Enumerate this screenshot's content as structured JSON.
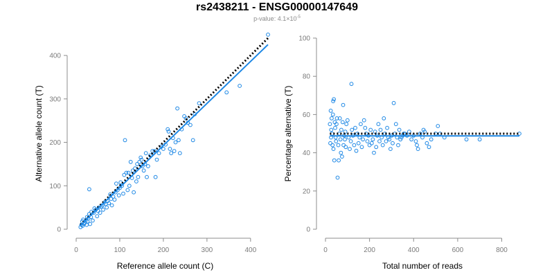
{
  "title": "rs2438211 - ENSG00000147649",
  "subtitle": {
    "prefix": "p-value: 4.1×10",
    "exponent": "-5"
  },
  "chart_data": [
    {
      "type": "scatter",
      "xlabel": "Reference allele count (C)",
      "ylabel": "Alternative allele count (T)",
      "xlim": [
        0,
        440
      ],
      "ylim": [
        0,
        440
      ],
      "xticks": [
        0,
        100,
        200,
        300,
        400
      ],
      "yticks": [
        0,
        100,
        200,
        300,
        400
      ],
      "point_color": "#1e88e5",
      "series": [
        {
          "type": "scatter",
          "points": [
            [
              10,
              5
            ],
            [
              12,
              10
            ],
            [
              14,
              18
            ],
            [
              15,
              8
            ],
            [
              16,
              22
            ],
            [
              18,
              12
            ],
            [
              20,
              15
            ],
            [
              22,
              20
            ],
            [
              24,
              10
            ],
            [
              25,
              28
            ],
            [
              26,
              18
            ],
            [
              28,
              25
            ],
            [
              30,
              92
            ],
            [
              30,
              35
            ],
            [
              32,
              12
            ],
            [
              34,
              28
            ],
            [
              35,
              40
            ],
            [
              38,
              20
            ],
            [
              40,
              38
            ],
            [
              42,
              48
            ],
            [
              45,
              45
            ],
            [
              48,
              30
            ],
            [
              50,
              42
            ],
            [
              52,
              50
            ],
            [
              55,
              38
            ],
            [
              58,
              52
            ],
            [
              60,
              55
            ],
            [
              62,
              45
            ],
            [
              65,
              62
            ],
            [
              68,
              58
            ],
            [
              70,
              50
            ],
            [
              72,
              65
            ],
            [
              75,
              60
            ],
            [
              78,
              80
            ],
            [
              80,
              70
            ],
            [
              82,
              55
            ],
            [
              85,
              75
            ],
            [
              88,
              68
            ],
            [
              90,
              85
            ],
            [
              92,
              105
            ],
            [
              95,
              90
            ],
            [
              98,
              78
            ],
            [
              100,
              95
            ],
            [
              102,
              108
            ],
            [
              105,
              100
            ],
            [
              108,
              82
            ],
            [
              110,
              125
            ],
            [
              112,
              205
            ],
            [
              115,
              130
            ],
            [
              118,
              90
            ],
            [
              120,
              130
            ],
            [
              122,
              100
            ],
            [
              125,
              155
            ],
            [
              128,
              118
            ],
            [
              130,
              135
            ],
            [
              132,
              85
            ],
            [
              135,
              140
            ],
            [
              138,
              110
            ],
            [
              140,
              150
            ],
            [
              142,
              120
            ],
            [
              145,
              155
            ],
            [
              148,
              165
            ],
            [
              150,
              160
            ],
            [
              152,
              145
            ],
            [
              155,
              135
            ],
            [
              158,
              150
            ],
            [
              160,
              175
            ],
            [
              162,
              120
            ],
            [
              165,
              145
            ],
            [
              170,
              170
            ],
            [
              175,
              180
            ],
            [
              180,
              180
            ],
            [
              182,
              120
            ],
            [
              185,
              160
            ],
            [
              190,
              175
            ],
            [
              195,
              190
            ],
            [
              200,
              185
            ],
            [
              205,
              195
            ],
            [
              210,
              230
            ],
            [
              212,
              225
            ],
            [
              215,
              185
            ],
            [
              218,
              175
            ],
            [
              222,
              210
            ],
            [
              225,
              180
            ],
            [
              228,
              200
            ],
            [
              232,
              278
            ],
            [
              235,
              205
            ],
            [
              238,
              175
            ],
            [
              242,
              230
            ],
            [
              248,
              260
            ],
            [
              252,
              255
            ],
            [
              256,
              245
            ],
            [
              262,
              240
            ],
            [
              268,
              205
            ],
            [
              272,
              265
            ],
            [
              282,
              290
            ],
            [
              345,
              315
            ],
            [
              375,
              330
            ],
            [
              440,
              448
            ]
          ]
        },
        {
          "type": "dotted-line",
          "role": "expected",
          "color": "#000000",
          "points": [
            [
              10,
              10
            ],
            [
              440,
              440
            ]
          ]
        },
        {
          "type": "line",
          "role": "fitted",
          "color": "#1e88e5",
          "points": [
            [
              10,
              9
            ],
            [
              440,
              425
            ]
          ]
        }
      ]
    },
    {
      "type": "scatter",
      "xlabel": "Total number of reads",
      "ylabel": "Percentage alternative (T)",
      "xlim": [
        0,
        880
      ],
      "ylim": [
        0,
        100
      ],
      "xticks": [
        0,
        200,
        400,
        600,
        800
      ],
      "yticks": [
        0,
        20,
        40,
        60,
        80,
        100
      ],
      "point_color": "#1e88e5",
      "series": [
        {
          "type": "scatter",
          "points": [
            [
              20,
              55
            ],
            [
              22,
              45
            ],
            [
              24,
              62
            ],
            [
              25,
              48
            ],
            [
              26,
              52
            ],
            [
              28,
              58
            ],
            [
              30,
              50
            ],
            [
              32,
              44
            ],
            [
              34,
              60
            ],
            [
              35,
              67
            ],
            [
              36,
              42
            ],
            [
              38,
              68
            ],
            [
              40,
              36
            ],
            [
              42,
              56
            ],
            [
              44,
              53
            ],
            [
              46,
              48
            ],
            [
              48,
              46
            ],
            [
              50,
              55
            ],
            [
              52,
              58
            ],
            [
              55,
              27
            ],
            [
              58,
              44
            ],
            [
              60,
              36
            ],
            [
              62,
              50
            ],
            [
              65,
              58
            ],
            [
              68,
              47
            ],
            [
              70,
              40
            ],
            [
              72,
              52
            ],
            [
              75,
              38
            ],
            [
              78,
              56
            ],
            [
              80,
              65
            ],
            [
              82,
              44
            ],
            [
              85,
              49
            ],
            [
              88,
              47
            ],
            [
              90,
              51
            ],
            [
              92,
              43
            ],
            [
              95,
              55
            ],
            [
              100,
              57
            ],
            [
              105,
              48
            ],
            [
              110,
              42
            ],
            [
              115,
              46
            ],
            [
              118,
              76
            ],
            [
              120,
              52
            ],
            [
              125,
              49
            ],
            [
              130,
              44
            ],
            [
              135,
              53
            ],
            [
              140,
              41
            ],
            [
              145,
              50
            ],
            [
              150,
              45
            ],
            [
              155,
              48
            ],
            [
              160,
              55
            ],
            [
              165,
              43
            ],
            [
              170,
              47
            ],
            [
              175,
              57
            ],
            [
              180,
              53
            ],
            [
              185,
              50
            ],
            [
              190,
              46
            ],
            [
              195,
              49
            ],
            [
              200,
              44
            ],
            [
              205,
              52
            ],
            [
              210,
              45
            ],
            [
              215,
              47
            ],
            [
              220,
              40
            ],
            [
              225,
              51
            ],
            [
              230,
              43
            ],
            [
              235,
              49
            ],
            [
              240,
              55
            ],
            [
              245,
              46
            ],
            [
              250,
              52
            ],
            [
              255,
              48
            ],
            [
              260,
              44
            ],
            [
              265,
              58
            ],
            [
              270,
              50
            ],
            [
              275,
              46
            ],
            [
              280,
              53
            ],
            [
              285,
              48
            ],
            [
              290,
              47
            ],
            [
              295,
              42
            ],
            [
              300,
              49
            ],
            [
              305,
              45
            ],
            [
              310,
              66
            ],
            [
              315,
              50
            ],
            [
              320,
              55
            ],
            [
              325,
              48
            ],
            [
              330,
              44
            ],
            [
              335,
              52
            ],
            [
              340,
              47
            ],
            [
              345,
              48
            ],
            [
              350,
              49
            ],
            [
              355,
              50
            ],
            [
              360,
              50
            ],
            [
              370,
              49
            ],
            [
              380,
              51
            ],
            [
              390,
              47
            ],
            [
              400,
              49
            ],
            [
              410,
              46
            ],
            [
              415,
              44
            ],
            [
              420,
              42
            ],
            [
              430,
              50
            ],
            [
              440,
              48
            ],
            [
              445,
              52
            ],
            [
              450,
              51
            ],
            [
              460,
              45
            ],
            [
              470,
              43
            ],
            [
              480,
              47
            ],
            [
              500,
              50
            ],
            [
              510,
              54
            ],
            [
              520,
              50
            ],
            [
              540,
              48
            ],
            [
              640,
              47
            ],
            [
              700,
              47
            ],
            [
              880,
              50
            ]
          ]
        },
        {
          "type": "dotted-line",
          "role": "expected",
          "color": "#000000",
          "points": [
            [
              20,
              50
            ],
            [
              880,
              50
            ]
          ]
        },
        {
          "type": "line",
          "role": "fitted",
          "color": "#1e88e5",
          "points": [
            [
              20,
              48.8
            ],
            [
              880,
              48.8
            ]
          ]
        }
      ]
    }
  ]
}
